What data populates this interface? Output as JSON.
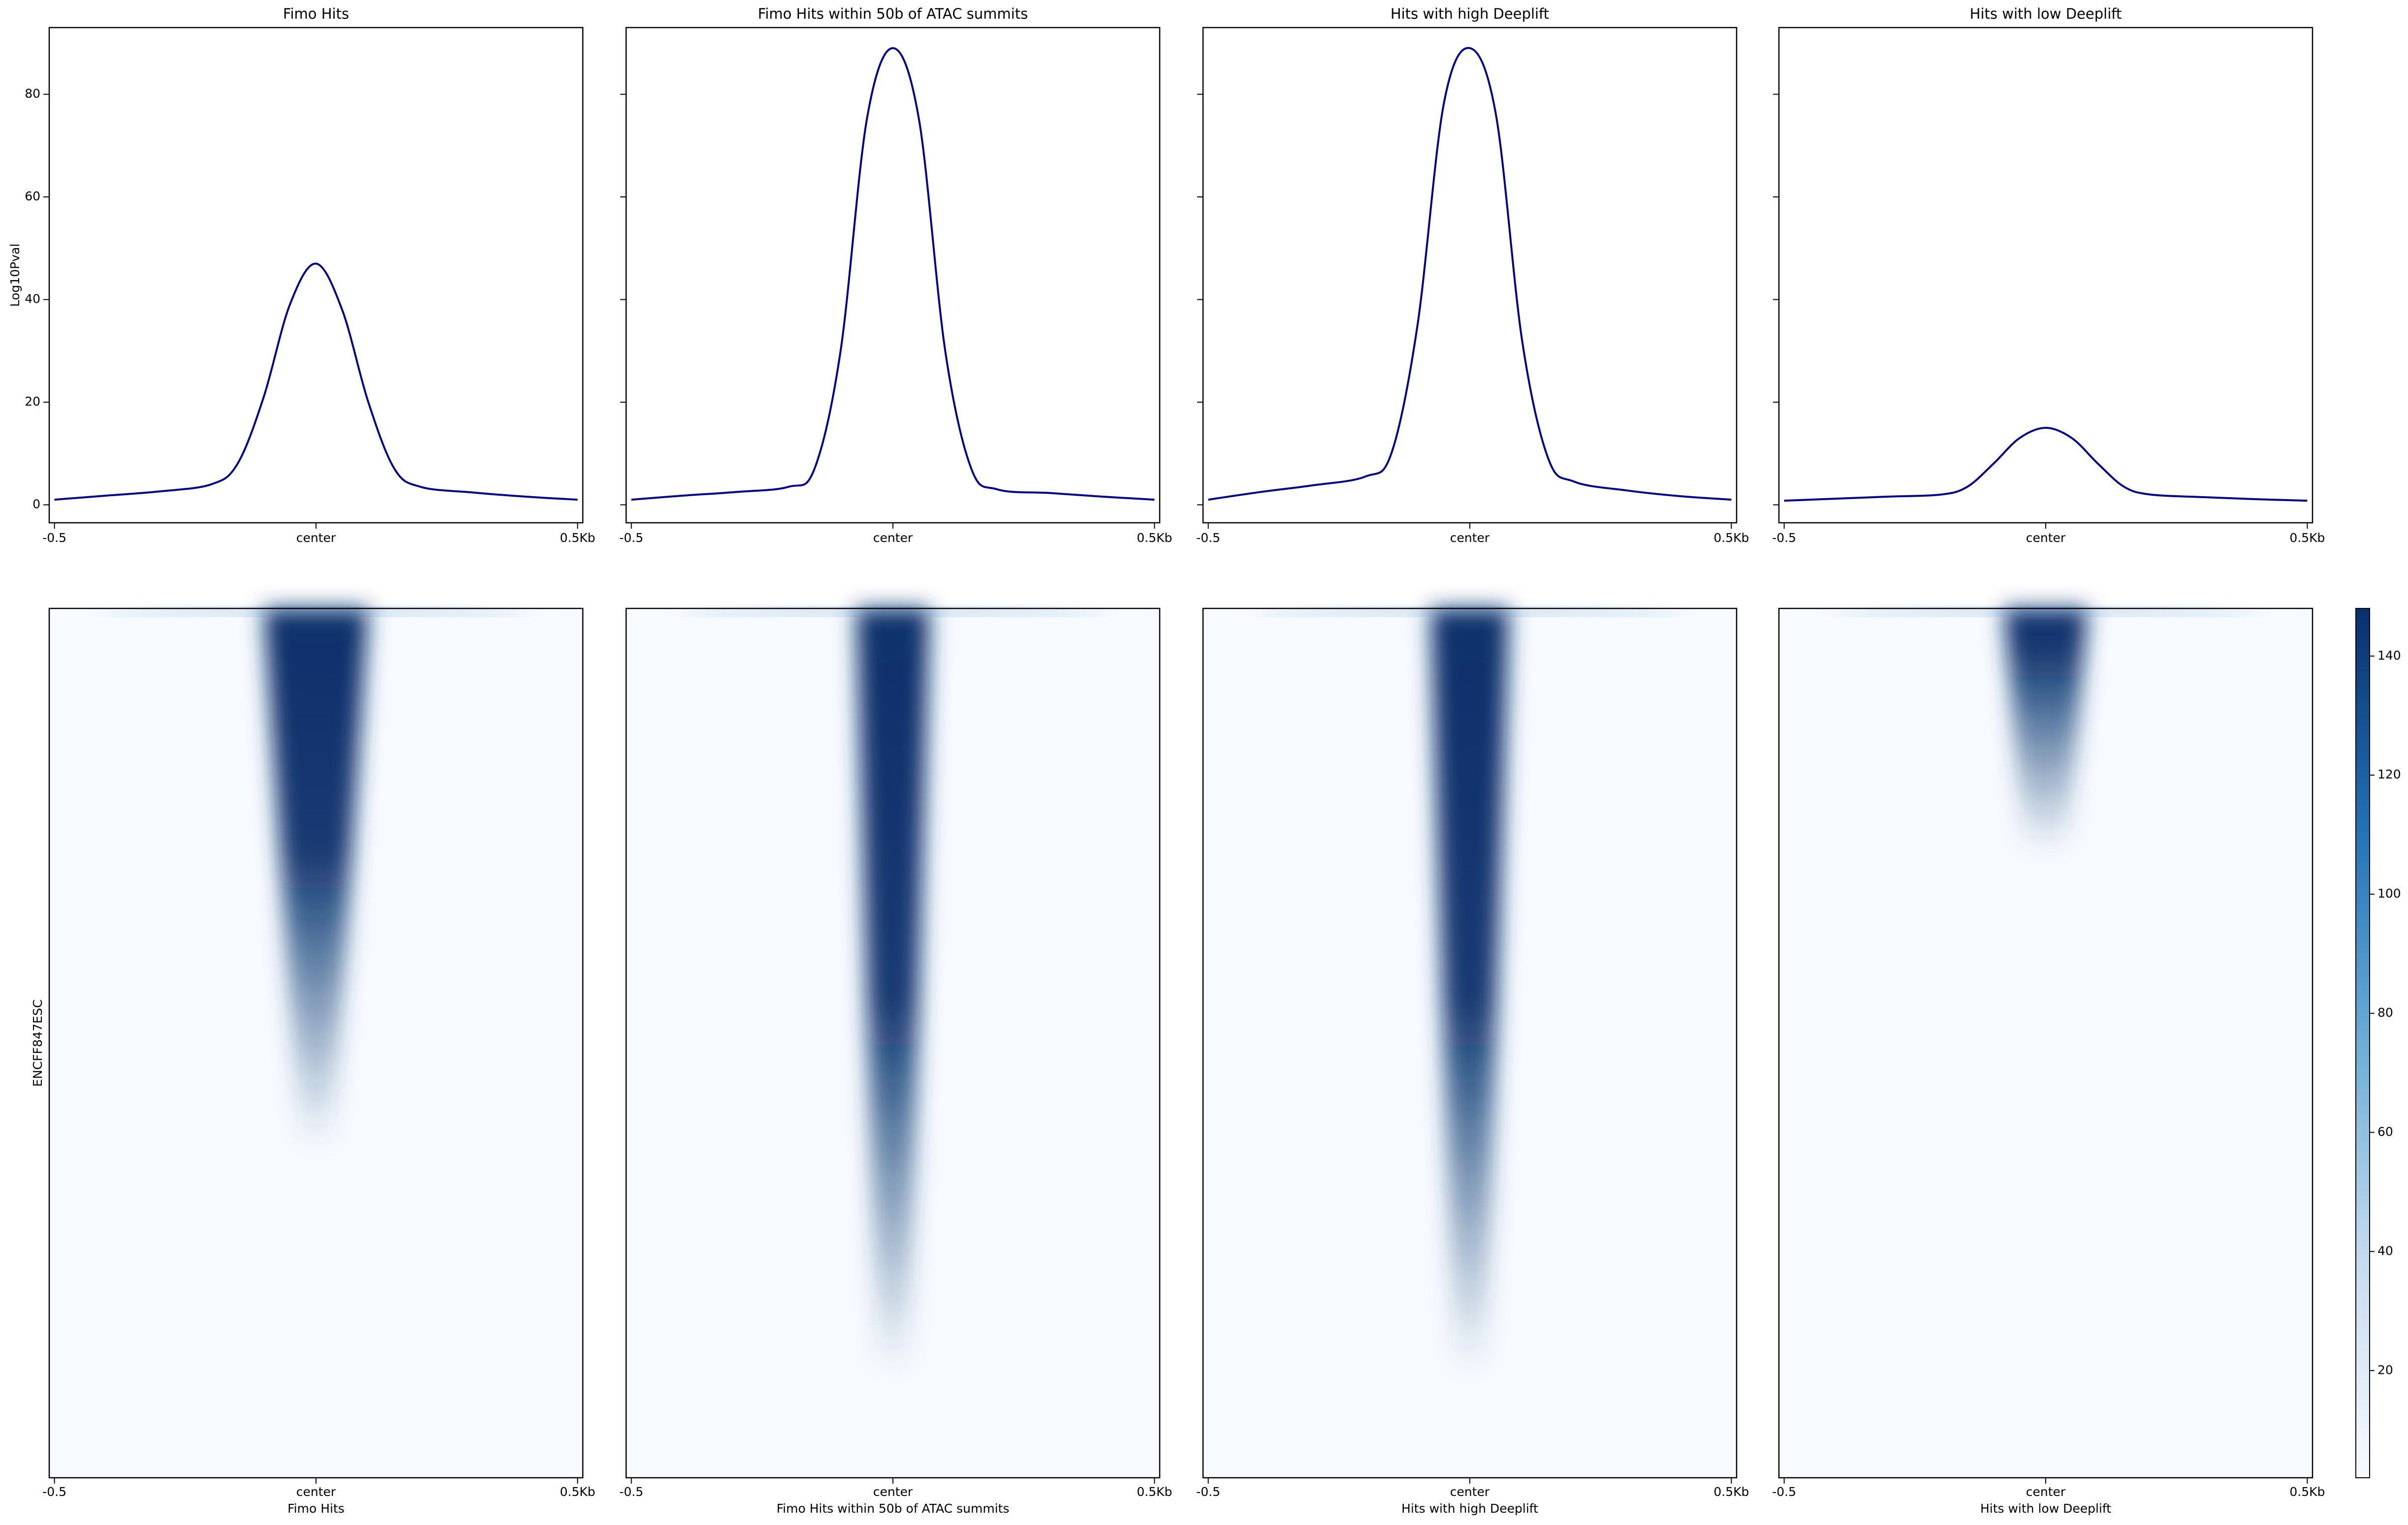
{
  "chart_data": [
    {
      "type": "line",
      "title": "Fimo Hits",
      "xlabel": "Fimo Hits",
      "ylabel": "Log10Pval",
      "heatmap_ylabel": "ENCFF847ESC",
      "x": [
        -0.5,
        -0.4,
        -0.3,
        -0.2,
        -0.15,
        -0.1,
        -0.05,
        0,
        0.05,
        0.1,
        0.15,
        0.2,
        0.3,
        0.4,
        0.5
      ],
      "series": [
        {
          "color": "#00008b",
          "values": [
            1,
            1.8,
            2.6,
            4,
            8,
            21,
            39,
            47,
            38,
            20,
            7,
            3.5,
            2.4,
            1.6,
            1
          ]
        }
      ],
      "xlim": [
        -0.51,
        0.51
      ],
      "xticks": [
        -0.5,
        {
          "value": 0,
          "label": "center"
        },
        {
          "value": 0.5,
          "label": "0.5Kb"
        }
      ],
      "ylim": [
        -3.5,
        93
      ],
      "yticks": [
        0,
        20,
        40,
        60,
        80
      ]
    },
    {
      "type": "line",
      "title": "Fimo Hits within 50b of ATAC summits",
      "xlabel": "Fimo Hits within 50b of ATAC summits",
      "x": [
        -0.5,
        -0.4,
        -0.3,
        -0.2,
        -0.15,
        -0.1,
        -0.05,
        0,
        0.05,
        0.1,
        0.15,
        0.2,
        0.3,
        0.4,
        0.5
      ],
      "series": [
        {
          "color": "#00008b",
          "values": [
            1,
            1.8,
            2.5,
            3.5,
            7,
            30,
            75,
            89,
            75,
            30,
            7,
            3,
            2.3,
            1.6,
            1
          ]
        }
      ],
      "xlim": [
        -0.51,
        0.51
      ],
      "xticks": [
        -0.5,
        {
          "value": 0,
          "label": "center"
        },
        {
          "value": 0.5,
          "label": "0.5Kb"
        }
      ],
      "ylim": [
        -3.5,
        93
      ],
      "yticks": [
        0,
        20,
        40,
        60,
        80
      ]
    },
    {
      "type": "line",
      "title": "Hits with high Deeplift",
      "xlabel": "Hits with high Deeplift",
      "x": [
        -0.5,
        -0.4,
        -0.3,
        -0.2,
        -0.15,
        -0.1,
        -0.05,
        0,
        0.05,
        0.1,
        0.15,
        0.2,
        0.3,
        0.4,
        0.5
      ],
      "series": [
        {
          "color": "#00008b",
          "values": [
            1,
            2.5,
            3.8,
            5.5,
            10,
            35,
            78,
            89,
            76,
            32,
            9,
            4.5,
            2.8,
            1.7,
            1
          ]
        }
      ],
      "xlim": [
        -0.51,
        0.51
      ],
      "xticks": [
        -0.5,
        {
          "value": 0,
          "label": "center"
        },
        {
          "value": 0.5,
          "label": "0.5Kb"
        }
      ],
      "ylim": [
        -3.5,
        93
      ],
      "yticks": [
        0,
        20,
        40,
        60,
        80
      ]
    },
    {
      "type": "line",
      "title": "Hits with low Deeplift",
      "xlabel": "Hits with low Deeplift",
      "x": [
        -0.5,
        -0.4,
        -0.3,
        -0.2,
        -0.15,
        -0.1,
        -0.05,
        0,
        0.05,
        0.1,
        0.15,
        0.2,
        0.3,
        0.4,
        0.5
      ],
      "series": [
        {
          "color": "#00008b",
          "values": [
            0.8,
            1.2,
            1.6,
            2,
            3.5,
            8,
            13,
            15,
            13,
            8,
            3.5,
            2,
            1.5,
            1.1,
            0.8
          ]
        }
      ],
      "xlim": [
        -0.51,
        0.51
      ],
      "xticks": [
        -0.5,
        {
          "value": 0,
          "label": "center"
        },
        {
          "value": 0.5,
          "label": "0.5Kb"
        }
      ],
      "ylim": [
        -3.5,
        93
      ],
      "yticks": [
        0,
        20,
        40,
        60,
        80
      ],
      "colorbar": {
        "lim": [
          2,
          148
        ],
        "ticks": [
          20,
          40,
          60,
          80,
          100,
          120,
          140
        ]
      }
    }
  ]
}
